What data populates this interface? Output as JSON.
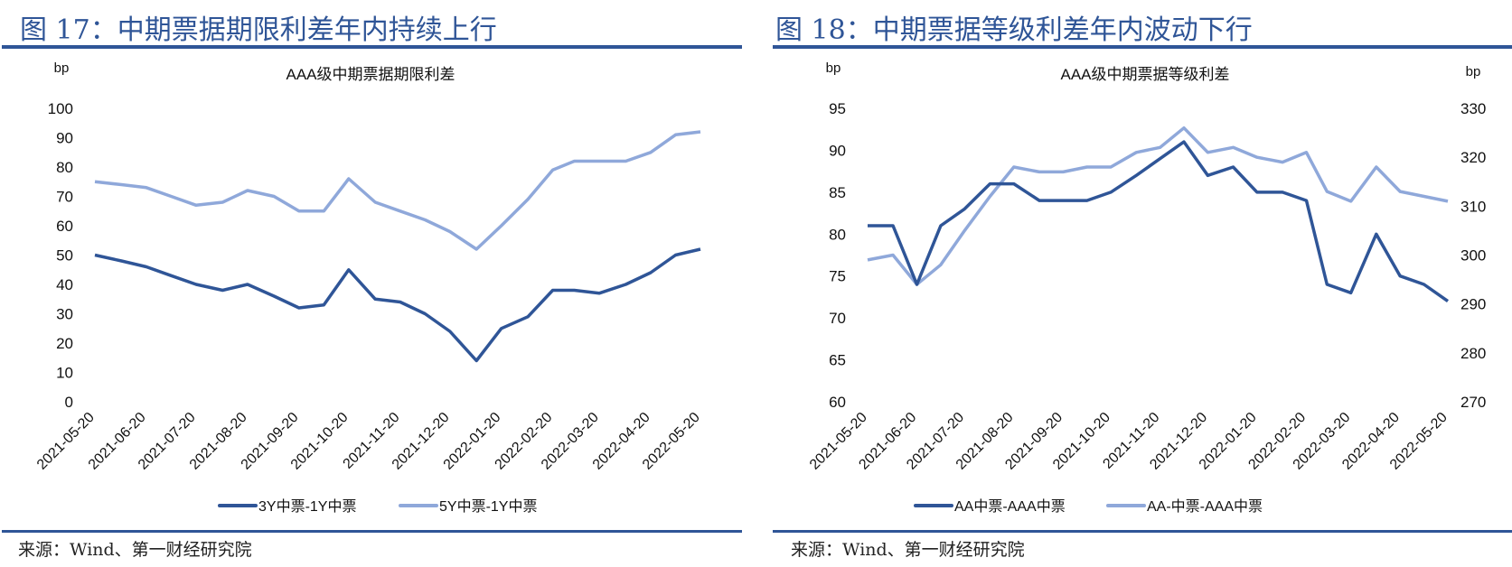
{
  "panels": [
    {
      "figure_title": "图 17：中期票据期限利差年内持续上行",
      "source": "来源：Wind、第一财经研究院"
    },
    {
      "figure_title": "图 18：中期票据等级利差年内波动下行",
      "source": "来源：Wind、第一财经研究院"
    }
  ],
  "colors": {
    "accent": "#2F5597",
    "series_dark": "#2F5597",
    "series_light": "#8FA8DA"
  },
  "chart_data": [
    {
      "type": "line",
      "title": "AAA级中期票据期限利差",
      "ylabel": "bp",
      "ylim": [
        0,
        100
      ],
      "yticks": [
        "0",
        "10",
        "20",
        "30",
        "40",
        "50",
        "60",
        "70",
        "80",
        "90",
        "100"
      ],
      "xticks": [
        "2021-05-20",
        "2021-06-20",
        "2021-07-20",
        "2021-08-20",
        "2021-09-20",
        "2021-10-20",
        "2021-11-20",
        "2021-12-20",
        "2022-01-20",
        "2022-02-20",
        "2022-03-20",
        "2022-04-20",
        "2022-05-20"
      ],
      "grid": false,
      "legend_position": "bottom",
      "x": [
        "2021-05-20",
        "2021-06-05",
        "2021-06-20",
        "2021-07-05",
        "2021-07-20",
        "2021-08-05",
        "2021-08-20",
        "2021-09-05",
        "2021-09-20",
        "2021-10-05",
        "2021-10-20",
        "2021-11-05",
        "2021-11-20",
        "2021-12-05",
        "2021-12-20",
        "2022-01-05",
        "2022-01-20",
        "2022-02-05",
        "2022-02-20",
        "2022-03-05",
        "2022-03-20",
        "2022-04-05",
        "2022-04-20",
        "2022-05-05",
        "2022-05-20"
      ],
      "series": [
        {
          "name": "3Y中票-1Y中票",
          "axis": "left",
          "color": "#2F5597",
          "values": [
            50,
            48,
            46,
            43,
            40,
            38,
            40,
            36,
            32,
            33,
            45,
            35,
            34,
            30,
            24,
            14,
            25,
            29,
            38,
            38,
            37,
            40,
            44,
            50,
            52
          ]
        },
        {
          "name": "5Y中票-1Y中票",
          "axis": "left",
          "color": "#8FA8DA",
          "values": [
            75,
            74,
            73,
            70,
            67,
            68,
            72,
            70,
            65,
            65,
            76,
            68,
            65,
            62,
            58,
            52,
            60,
            69,
            79,
            82,
            82,
            82,
            85,
            91,
            92
          ]
        }
      ]
    },
    {
      "type": "line",
      "title": "AAA级中期票据等级利差",
      "ylabel": "bp",
      "ylabel_right": "bp",
      "ylim": [
        60,
        95
      ],
      "ylim_right": [
        270,
        330
      ],
      "yticks": [
        "60",
        "65",
        "70",
        "75",
        "80",
        "85",
        "90",
        "95"
      ],
      "yticks_right": [
        "270",
        "280",
        "290",
        "300",
        "310",
        "320",
        "330"
      ],
      "xticks": [
        "2021-05-20",
        "2021-06-20",
        "2021-07-20",
        "2021-08-20",
        "2021-09-20",
        "2021-10-20",
        "2021-11-20",
        "2021-12-20",
        "2022-01-20",
        "2022-02-20",
        "2022-03-20",
        "2022-04-20",
        "2022-05-20"
      ],
      "grid": false,
      "legend_position": "bottom",
      "x": [
        "2021-05-20",
        "2021-06-05",
        "2021-06-20",
        "2021-07-05",
        "2021-07-20",
        "2021-08-05",
        "2021-08-20",
        "2021-09-05",
        "2021-09-20",
        "2021-10-05",
        "2021-10-20",
        "2021-11-05",
        "2021-11-20",
        "2021-12-05",
        "2021-12-20",
        "2022-01-05",
        "2022-01-20",
        "2022-02-05",
        "2022-02-20",
        "2022-03-05",
        "2022-03-20",
        "2022-04-05",
        "2022-04-20",
        "2022-05-05",
        "2022-05-20"
      ],
      "series": [
        {
          "name": "AA中票-AAA中票",
          "axis": "left",
          "color": "#2F5597",
          "values": [
            81,
            81,
            74,
            81,
            83,
            86,
            86,
            84,
            84,
            84,
            85,
            87,
            89,
            91,
            87,
            88,
            85,
            85,
            84,
            74,
            73,
            80,
            75,
            74,
            72
          ]
        },
        {
          "name": "AA-中票-AAA中票",
          "axis": "right",
          "color": "#8FA8DA",
          "values": [
            299,
            300,
            294,
            298,
            305,
            312,
            318,
            317,
            317,
            318,
            318,
            321,
            322,
            326,
            321,
            322,
            320,
            319,
            321,
            313,
            311,
            318,
            313,
            312,
            311
          ]
        }
      ]
    }
  ]
}
